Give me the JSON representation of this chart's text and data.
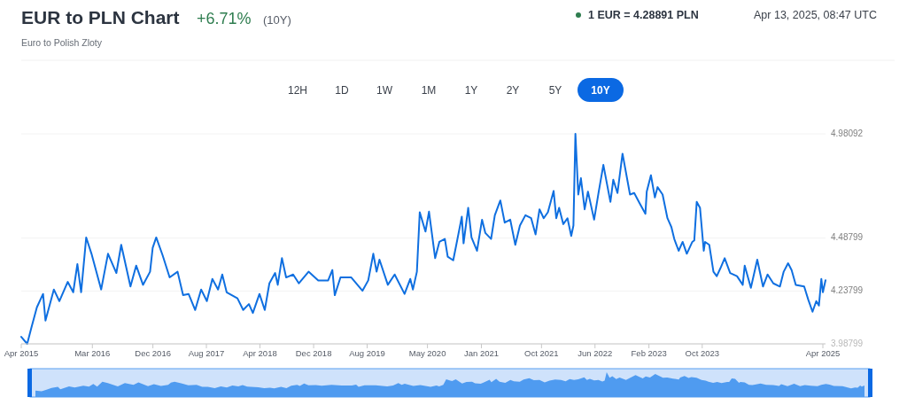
{
  "chart_data": {
    "type": "line",
    "title": "EUR to PLN Chart",
    "subtitle": "Euro to Polish Zloty",
    "annotations": [
      "+6.71%",
      "(10Y)",
      "1 EUR = 4.28891 PLN",
      "Apr 13, 2025, 08:47 UTC",
      "12H",
      "1D",
      "1W",
      "1M",
      "1Y",
      "2Y",
      "5Y",
      "10Y"
    ],
    "x": [
      "2015-04-13",
      "2015-05-10",
      "2015-05-29",
      "2015-06-23",
      "2015-07-21",
      "2015-08-01",
      "2015-09-08",
      "2015-10-03",
      "2015-11-10",
      "2015-12-05",
      "2015-12-24",
      "2016-01-10",
      "2016-02-02",
      "2016-02-26",
      "2016-04-10",
      "2016-05-11",
      "2016-06-18",
      "2016-07-10",
      "2016-08-21",
      "2016-09-16",
      "2016-10-17",
      "2016-11-18",
      "2016-11-30",
      "2016-12-16",
      "2017-01-14",
      "2017-02-15",
      "2017-03-23",
      "2017-04-17",
      "2017-05-12",
      "2017-06-11",
      "2017-07-08",
      "2017-08-03",
      "2017-08-28",
      "2017-09-23",
      "2017-10-12",
      "2017-11-01",
      "2017-12-20",
      "2018-01-15",
      "2018-02-10",
      "2018-02-28",
      "2018-03-30",
      "2018-04-23",
      "2018-05-14",
      "2018-06-09",
      "2018-06-21",
      "2018-07-10",
      "2018-07-29",
      "2018-08-30",
      "2018-09-25",
      "2018-11-08",
      "2018-12-22",
      "2019-02-05",
      "2019-02-24",
      "2019-03-07",
      "2019-04-02",
      "2019-05-21",
      "2019-07-11",
      "2019-08-06",
      "2019-08-29",
      "2019-09-13",
      "2019-09-26",
      "2019-11-03",
      "2019-12-04",
      "2020-01-18",
      "2020-02-13",
      "2020-02-25",
      "2020-03-14",
      "2020-03-27",
      "2020-04-22",
      "2020-05-08",
      "2020-06-05",
      "2020-06-24",
      "2020-07-19",
      "2020-08-01",
      "2020-08-26",
      "2020-09-09",
      "2020-10-04",
      "2020-10-12",
      "2020-11-02",
      "2020-11-17",
      "2020-12-12",
      "2021-01-04",
      "2021-01-19",
      "2021-02-14",
      "2021-03-03",
      "2021-03-28",
      "2021-04-17",
      "2021-05-12",
      "2021-06-04",
      "2021-06-25",
      "2021-07-20",
      "2021-08-15",
      "2021-09-04",
      "2021-09-22",
      "2021-10-11",
      "2021-10-30",
      "2021-11-25",
      "2021-12-07",
      "2021-12-20",
      "2022-01-08",
      "2022-01-27",
      "2022-02-13",
      "2022-02-23",
      "2022-03-04",
      "2022-03-17",
      "2022-03-29",
      "2022-04-15",
      "2022-04-30",
      "2022-05-28",
      "2022-06-18",
      "2022-07-09",
      "2022-08-10",
      "2022-08-23",
      "2022-09-11",
      "2022-10-04",
      "2022-11-07",
      "2022-11-26",
      "2022-12-21",
      "2023-01-16",
      "2023-01-22",
      "2023-02-10",
      "2023-02-28",
      "2023-03-12",
      "2023-04-04",
      "2023-04-26",
      "2023-05-14",
      "2023-05-27",
      "2023-06-16",
      "2023-07-04",
      "2023-07-23",
      "2023-08-17",
      "2023-08-26",
      "2023-09-06",
      "2023-09-21",
      "2023-10-08",
      "2023-10-14",
      "2023-11-02",
      "2023-11-21",
      "2023-12-06",
      "2023-12-22",
      "2024-01-11",
      "2024-02-05",
      "2024-03-07",
      "2024-04-02",
      "2024-04-11",
      "2024-05-09",
      "2024-06-07",
      "2024-07-03",
      "2024-07-24",
      "2024-08-19",
      "2024-09-18",
      "2024-10-05",
      "2024-10-25",
      "2024-11-10",
      "2024-11-29",
      "2025-01-06",
      "2025-01-25",
      "2025-02-13",
      "2025-03-02",
      "2025-03-14",
      "2025-03-25",
      "2025-04-01",
      "2025-04-13"
    ],
    "series": [
      {
        "color": "#0f6fe0",
        "values": [
          4.021,
          3.988,
          4.064,
          4.161,
          4.224,
          4.098,
          4.245,
          4.19,
          4.281,
          4.232,
          4.365,
          4.232,
          4.491,
          4.414,
          4.245,
          4.414,
          4.323,
          4.456,
          4.259,
          4.358,
          4.267,
          4.329,
          4.442,
          4.491,
          4.407,
          4.302,
          4.329,
          4.218,
          4.224,
          4.148,
          4.245,
          4.19,
          4.295,
          4.245,
          4.316,
          4.232,
          4.203,
          4.148,
          4.176,
          4.134,
          4.224,
          4.148,
          4.274,
          4.323,
          4.267,
          4.393,
          4.302,
          4.316,
          4.274,
          4.329,
          4.288,
          4.288,
          4.337,
          4.218,
          4.302,
          4.302,
          4.239,
          4.288,
          4.414,
          4.329,
          4.386,
          4.267,
          4.316,
          4.224,
          4.295,
          4.245,
          4.329,
          4.61,
          4.519,
          4.613,
          4.393,
          4.47,
          4.484,
          4.4,
          4.383,
          4.456,
          4.589,
          4.463,
          4.631,
          4.491,
          4.428,
          4.575,
          4.512,
          4.484,
          4.596,
          4.666,
          4.561,
          4.575,
          4.456,
          4.547,
          4.596,
          4.582,
          4.505,
          4.624,
          4.582,
          4.61,
          4.711,
          4.582,
          4.631,
          4.554,
          4.582,
          4.498,
          4.547,
          4.98092,
          4.694,
          4.771,
          4.624,
          4.708,
          4.575,
          4.708,
          4.834,
          4.659,
          4.764,
          4.701,
          4.887,
          4.694,
          4.701,
          4.652,
          4.603,
          4.708,
          4.785,
          4.68,
          4.729,
          4.694,
          4.582,
          4.54,
          4.484,
          4.428,
          4.47,
          4.414,
          4.47,
          4.477,
          4.659,
          4.631,
          4.428,
          4.47,
          4.456,
          4.329,
          4.308,
          4.344,
          4.393,
          4.323,
          4.308,
          4.267,
          4.358,
          4.253,
          4.386,
          4.259,
          4.316,
          4.274,
          4.259,
          4.329,
          4.369,
          4.337,
          4.267,
          4.259,
          4.196,
          4.14,
          4.19,
          4.169,
          4.295,
          4.232,
          4.28891
        ]
      }
    ],
    "xlim": [
      "2015-04-13",
      "2025-04-13"
    ],
    "xticks": [
      {
        "value": "2015-04-13",
        "label": "Apr 2015"
      },
      {
        "value": "2016-03-01",
        "label": "Mar 2016"
      },
      {
        "value": "2016-12-01",
        "label": "Dec 2016"
      },
      {
        "value": "2017-08-01",
        "label": "Aug 2017"
      },
      {
        "value": "2018-04-01",
        "label": "Apr 2018"
      },
      {
        "value": "2018-12-01",
        "label": "Dec 2018"
      },
      {
        "value": "2019-08-01",
        "label": "Aug 2019"
      },
      {
        "value": "2020-05-01",
        "label": "May 2020"
      },
      {
        "value": "2021-01-01",
        "label": "Jan 2021"
      },
      {
        "value": "2021-10-01",
        "label": "Oct 2021"
      },
      {
        "value": "2022-06-01",
        "label": "Jun 2022"
      },
      {
        "value": "2023-02-01",
        "label": "Feb 2023"
      },
      {
        "value": "2023-10-01",
        "label": "Oct 2023"
      },
      {
        "value": "2025-04-01",
        "label": "Apr 2025"
      }
    ],
    "ylim": [
      3.98799,
      4.98092
    ],
    "yticks": [
      3.98799,
      4.23799,
      4.48799,
      4.98092
    ],
    "grid": "y",
    "marker": "none",
    "line_style": "solid"
  }
}
